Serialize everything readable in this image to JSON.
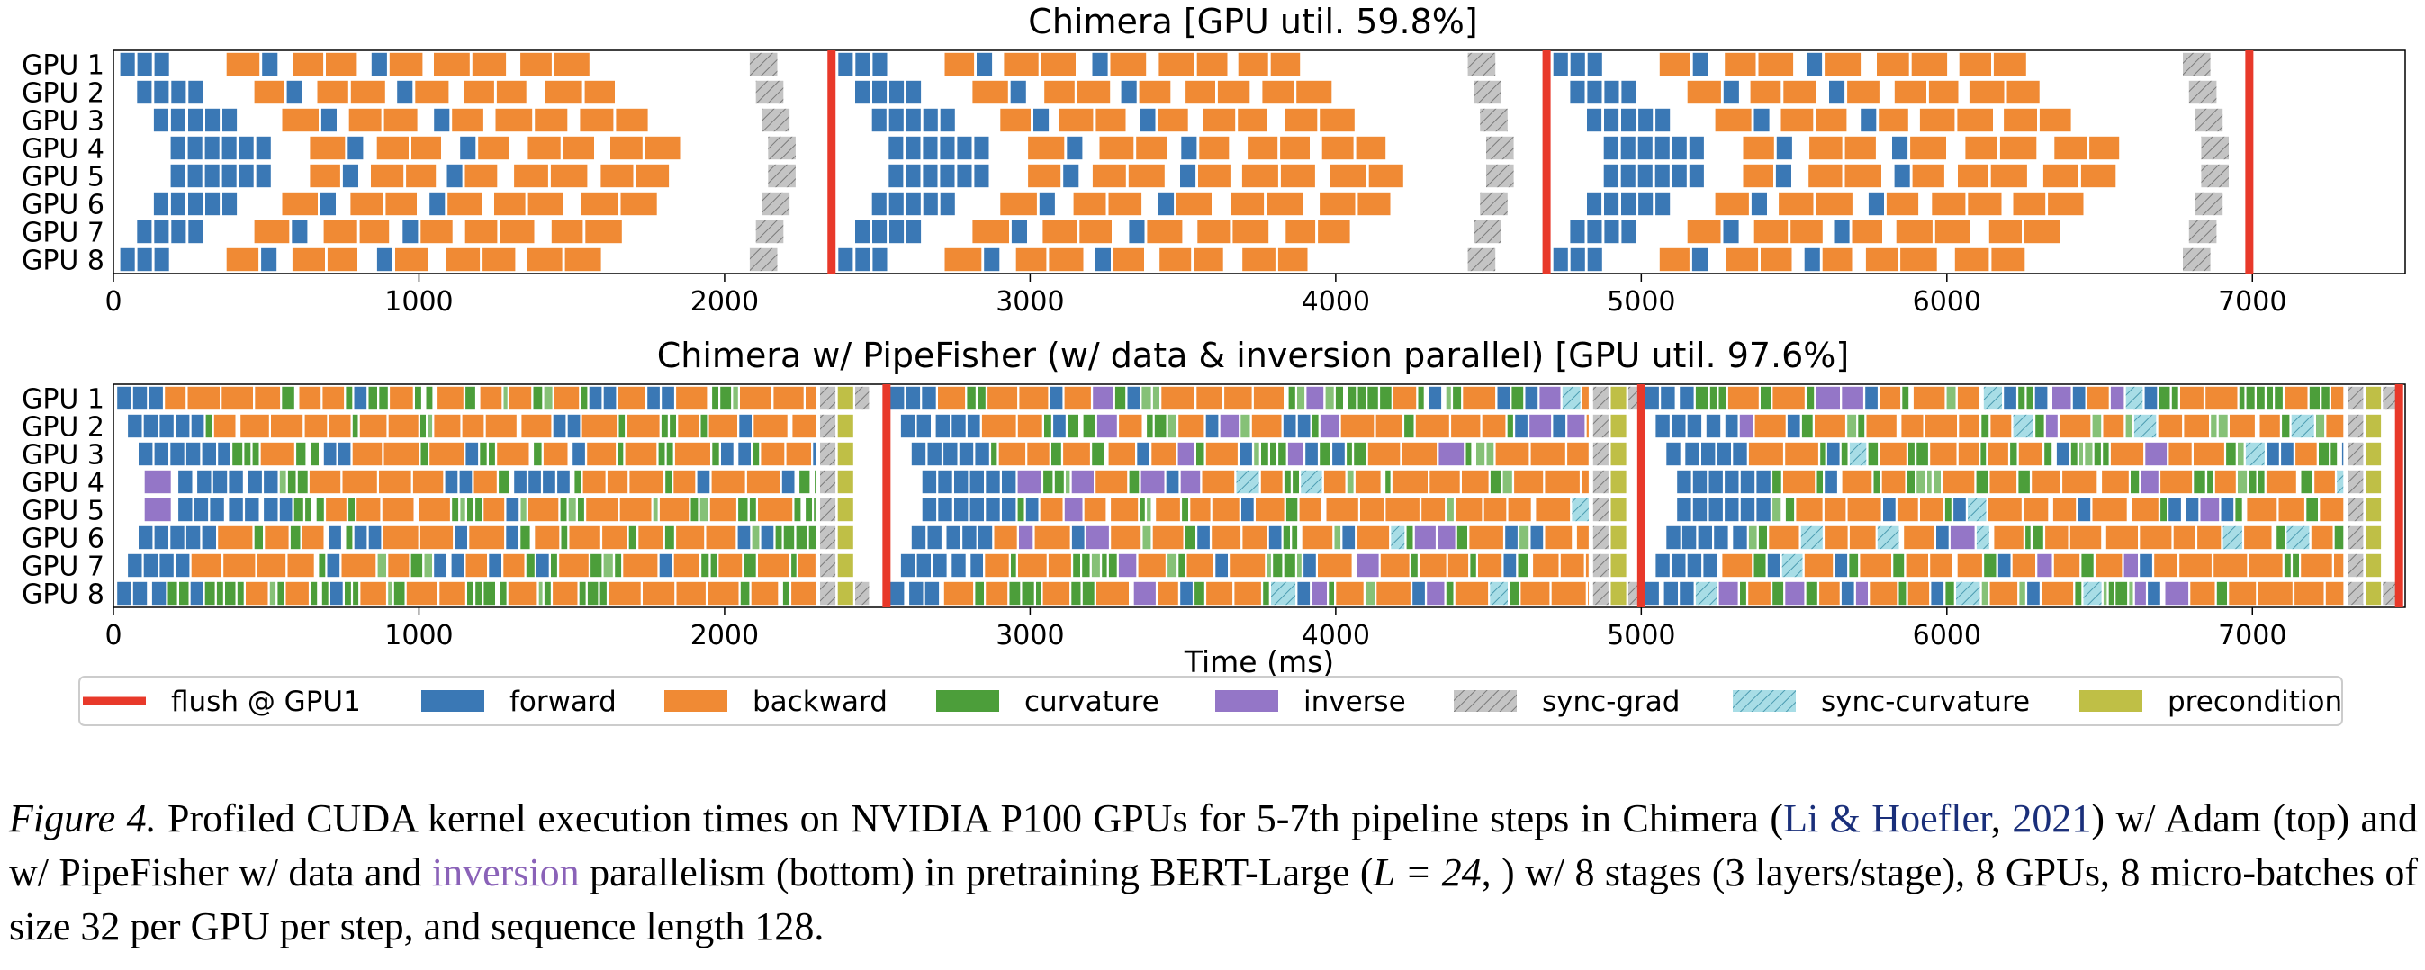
{
  "colors": {
    "flush": "#e8392a",
    "forward": "#3a78b5",
    "backward": "#f08a34",
    "curvature": "#4c9e3a",
    "curvature_light": "#86c177",
    "inverse": "#9476c7",
    "sync_grad": "#c4c4c4",
    "sync_curvature": "#a8dde6",
    "precondition": "#bfbf46"
  },
  "legend": {
    "items": [
      {
        "key": "flush",
        "label": "flush @ GPU1",
        "style": "line"
      },
      {
        "key": "forward",
        "label": "forward",
        "style": "solid"
      },
      {
        "key": "backward",
        "label": "backward",
        "style": "solid"
      },
      {
        "key": "curvature",
        "label": "curvature",
        "style": "solid"
      },
      {
        "key": "inverse",
        "label": "inverse",
        "style": "solid"
      },
      {
        "key": "sync_grad",
        "label": "sync-grad",
        "style": "hatch"
      },
      {
        "key": "sync_curvature",
        "label": "sync-curvature",
        "style": "hatch"
      },
      {
        "key": "precondition",
        "label": "precondition",
        "style": "solid"
      }
    ]
  },
  "chart_data": [
    {
      "type": "timeline",
      "title": "Chimera [GPU util. 59.8%]",
      "xlabel": "",
      "ylabel": "",
      "xlim": [
        0,
        7500
      ],
      "xticks": [
        0,
        1000,
        2000,
        3000,
        4000,
        5000,
        6000,
        7000
      ],
      "categories": [
        "GPU 1",
        "GPU 2",
        "GPU 3",
        "GPU 4",
        "GPU 5",
        "GPU 6",
        "GPU 7",
        "GPU 8"
      ],
      "flush_ms": [
        2350,
        4690,
        6990
      ],
      "step_start_ms": [
        0,
        2350,
        4690
      ],
      "step_duration_ms": 2300,
      "kernels": [
        "forward",
        "backward",
        "sync_grad"
      ]
    },
    {
      "type": "timeline",
      "title": "Chimera w/ PipeFisher (w/ data & inversion parallel) [GPU util. 97.6%]",
      "xlabel": "Time (ms)",
      "ylabel": "",
      "xlim": [
        0,
        7500
      ],
      "xticks": [
        0,
        1000,
        2000,
        3000,
        4000,
        5000,
        6000,
        7000
      ],
      "categories": [
        "GPU 1",
        "GPU 2",
        "GPU 3",
        "GPU 4",
        "GPU 5",
        "GPU 6",
        "GPU 7",
        "GPU 8"
      ],
      "flush_ms": [
        2530,
        5000,
        7480
      ],
      "step_start_ms": [
        0,
        2530,
        5000
      ],
      "step_duration_ms": 2480,
      "kernels": [
        "forward",
        "backward",
        "curvature",
        "inverse",
        "sync_grad",
        "sync_curvature",
        "precondition"
      ]
    }
  ],
  "caption": {
    "label": "Figure 4.",
    "text_1": " Profiled CUDA kernel execution times on NVIDIA P100 GPUs for 5-7th pipeline steps in Chimera (",
    "cite_author": "Li & Hoefler",
    "cite_sep": ", ",
    "cite_year": "2021",
    "text_2": ") w/ Adam (top) and w/ PipeFisher w/ data and ",
    "highlight": "inversion",
    "text_3": " parallelism (bottom) in pretraining BERT-Large (",
    "math": "L = 24,",
    "text_4": " ) w/ 8 stages (3 layers/stage), 8 GPUs, 8 micro-batches of size 32 per GPU per step, and sequence length 128."
  }
}
